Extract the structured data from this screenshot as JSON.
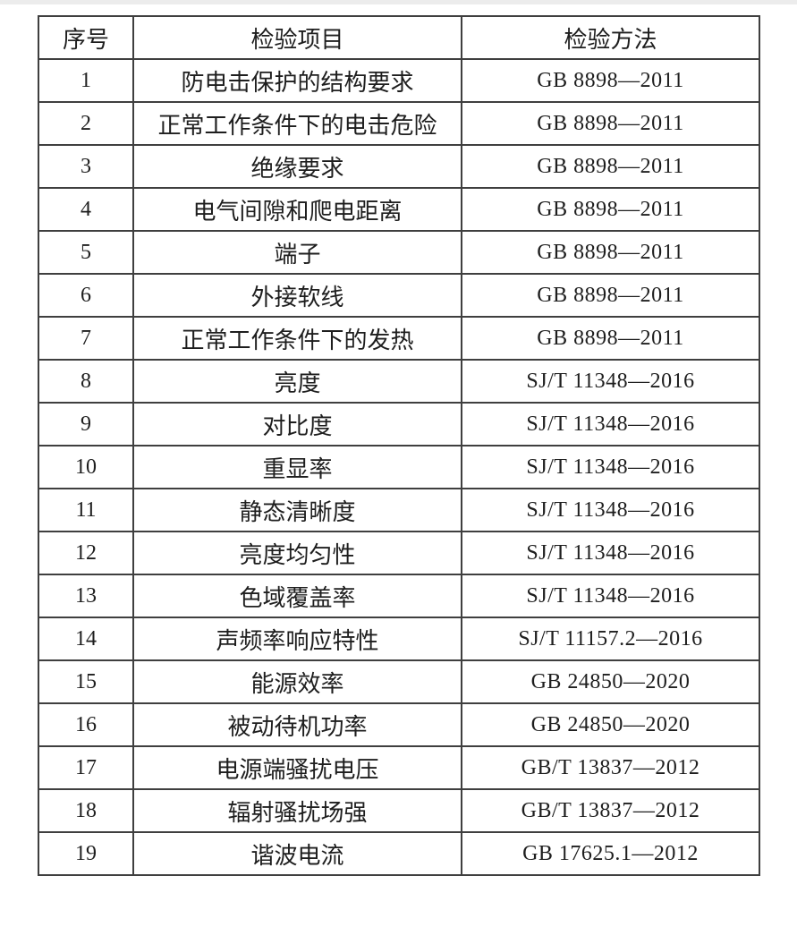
{
  "page": {
    "background_color": "#ffffff",
    "top_edge_color": "#ececec"
  },
  "table": {
    "border_color": "#3f3f3f",
    "text_color": "#1e1e1e",
    "headers": [
      "序号",
      "检验项目",
      "检验方法"
    ],
    "rows": [
      {
        "no": "1",
        "item": "防电击保护的结构要求",
        "method": "GB 8898—2011"
      },
      {
        "no": "2",
        "item": "正常工作条件下的电击危险",
        "method": "GB 8898—2011"
      },
      {
        "no": "3",
        "item": "绝缘要求",
        "method": "GB 8898—2011"
      },
      {
        "no": "4",
        "item": "电气间隙和爬电距离",
        "method": "GB 8898—2011"
      },
      {
        "no": "5",
        "item": "端子",
        "method": "GB 8898—2011"
      },
      {
        "no": "6",
        "item": "外接软线",
        "method": "GB 8898—2011"
      },
      {
        "no": "7",
        "item": "正常工作条件下的发热",
        "method": "GB 8898—2011"
      },
      {
        "no": "8",
        "item": "亮度",
        "method": "SJ/T 11348—2016"
      },
      {
        "no": "9",
        "item": "对比度",
        "method": "SJ/T 11348—2016"
      },
      {
        "no": "10",
        "item": "重显率",
        "method": "SJ/T 11348—2016"
      },
      {
        "no": "11",
        "item": "静态清晰度",
        "method": "SJ/T 11348—2016"
      },
      {
        "no": "12",
        "item": "亮度均匀性",
        "method": "SJ/T 11348—2016"
      },
      {
        "no": "13",
        "item": "色域覆盖率",
        "method": "SJ/T 11348—2016"
      },
      {
        "no": "14",
        "item": "声频率响应特性",
        "method": "SJ/T 11157.2—2016"
      },
      {
        "no": "15",
        "item": "能源效率",
        "method": "GB 24850—2020"
      },
      {
        "no": "16",
        "item": "被动待机功率",
        "method": "GB 24850—2020"
      },
      {
        "no": "17",
        "item": "电源端骚扰电压",
        "method": "GB/T 13837—2012"
      },
      {
        "no": "18",
        "item": "辐射骚扰场强",
        "method": "GB/T 13837—2012"
      },
      {
        "no": "19",
        "item": "谐波电流",
        "method": "GB 17625.1—2012"
      }
    ]
  }
}
